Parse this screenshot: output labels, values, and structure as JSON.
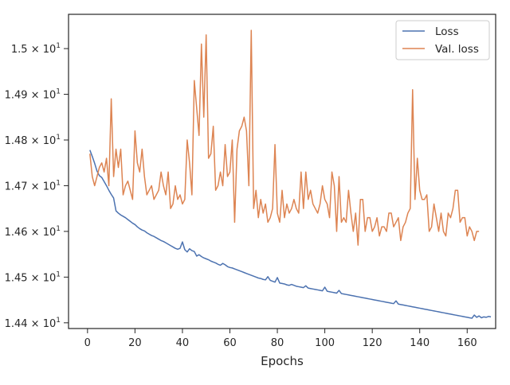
{
  "chart_data": {
    "type": "line",
    "title": "",
    "xlabel": "Epochs",
    "ylabel": "",
    "xlim": [
      -8,
      172
    ],
    "ylim": [
      14.3875,
      15.075
    ],
    "x_ticks": [
      0,
      20,
      40,
      60,
      80,
      100,
      120,
      140,
      160
    ],
    "x_tick_labels": [
      "0",
      "20",
      "40",
      "60",
      "80",
      "100",
      "120",
      "140",
      "160"
    ],
    "y_ticks": [
      14.4,
      14.5,
      14.6,
      14.7,
      14.8,
      14.9,
      15.0
    ],
    "y_tick_labels": [
      {
        "mantissa": "1.44",
        "base": "10",
        "exponent": "1"
      },
      {
        "mantissa": "1.45",
        "base": "10",
        "exponent": "1"
      },
      {
        "mantissa": "1.46",
        "base": "10",
        "exponent": "1"
      },
      {
        "mantissa": "1.47",
        "base": "10",
        "exponent": "1"
      },
      {
        "mantissa": "1.48",
        "base": "10",
        "exponent": "1"
      },
      {
        "mantissa": "1.49",
        "base": "10",
        "exponent": "1"
      },
      {
        "mantissa": "1.5",
        "base": "10",
        "exponent": "1"
      }
    ],
    "grid": false,
    "legend_position": "top-right",
    "series": [
      {
        "name": "Loss",
        "color": "#4c72b0",
        "x_start": 1,
        "values": [
          14.778,
          14.764,
          14.749,
          14.732,
          14.722,
          14.718,
          14.709,
          14.7,
          14.69,
          14.681,
          14.673,
          14.645,
          14.64,
          14.636,
          14.633,
          14.63,
          14.626,
          14.622,
          14.618,
          14.615,
          14.61,
          14.606,
          14.603,
          14.601,
          14.597,
          14.594,
          14.591,
          14.589,
          14.586,
          14.583,
          14.58,
          14.578,
          14.575,
          14.572,
          14.569,
          14.566,
          14.563,
          14.561,
          14.563,
          14.577,
          14.56,
          14.555,
          14.562,
          14.558,
          14.556,
          14.546,
          14.549,
          14.545,
          14.542,
          14.54,
          14.538,
          14.535,
          14.533,
          14.531,
          14.528,
          14.526,
          14.53,
          14.527,
          14.523,
          14.521,
          14.52,
          14.518,
          14.516,
          14.514,
          14.512,
          14.51,
          14.508,
          14.506,
          14.504,
          14.502,
          14.5,
          14.498,
          14.497,
          14.495,
          14.494,
          14.501,
          14.493,
          14.491,
          14.489,
          14.499,
          14.487,
          14.486,
          14.485,
          14.483,
          14.482,
          14.484,
          14.482,
          14.48,
          14.479,
          14.478,
          14.477,
          14.481,
          14.476,
          14.475,
          14.474,
          14.473,
          14.472,
          14.471,
          14.47,
          14.478,
          14.469,
          14.468,
          14.467,
          14.466,
          14.465,
          14.471,
          14.464,
          14.463,
          14.462,
          14.461,
          14.46,
          14.459,
          14.458,
          14.457,
          14.456,
          14.455,
          14.454,
          14.453,
          14.452,
          14.451,
          14.45,
          14.449,
          14.448,
          14.447,
          14.446,
          14.445,
          14.444,
          14.443,
          14.442,
          14.448,
          14.441,
          14.44,
          14.439,
          14.438,
          14.437,
          14.436,
          14.435,
          14.434,
          14.433,
          14.432,
          14.431,
          14.43,
          14.429,
          14.428,
          14.427,
          14.426,
          14.425,
          14.424,
          14.423,
          14.422,
          14.421,
          14.42,
          14.419,
          14.418,
          14.417,
          14.416,
          14.415,
          14.414,
          14.413,
          14.412,
          14.411,
          14.41,
          14.417,
          14.412,
          14.415,
          14.411,
          14.413,
          14.412,
          14.414,
          14.413
        ]
      },
      {
        "name": "Val. loss",
        "color": "#dd8452",
        "x_start": 1,
        "values": [
          14.77,
          14.72,
          14.7,
          14.72,
          14.74,
          14.75,
          14.73,
          14.76,
          14.7,
          14.89,
          14.72,
          14.78,
          14.74,
          14.78,
          14.68,
          14.7,
          14.71,
          14.69,
          14.67,
          14.82,
          14.75,
          14.73,
          14.78,
          14.72,
          14.68,
          14.69,
          14.7,
          14.67,
          14.68,
          14.69,
          14.73,
          14.7,
          14.68,
          14.73,
          14.65,
          14.66,
          14.7,
          14.67,
          14.68,
          14.66,
          14.67,
          14.8,
          14.75,
          14.68,
          14.93,
          14.87,
          14.81,
          15.01,
          14.85,
          15.03,
          14.76,
          14.77,
          14.83,
          14.69,
          14.7,
          14.73,
          14.7,
          14.79,
          14.72,
          14.73,
          14.8,
          14.62,
          14.78,
          14.82,
          14.83,
          14.85,
          14.82,
          14.7,
          15.04,
          14.65,
          14.69,
          14.63,
          14.67,
          14.64,
          14.66,
          14.62,
          14.63,
          14.65,
          14.79,
          14.64,
          14.62,
          14.69,
          14.63,
          14.66,
          14.64,
          14.65,
          14.67,
          14.65,
          14.64,
          14.73,
          14.65,
          14.73,
          14.67,
          14.69,
          14.66,
          14.65,
          14.64,
          14.66,
          14.7,
          14.67,
          14.66,
          14.63,
          14.73,
          14.7,
          14.6,
          14.72,
          14.62,
          14.63,
          14.62,
          14.69,
          14.64,
          14.6,
          14.64,
          14.57,
          14.67,
          14.67,
          14.6,
          14.63,
          14.63,
          14.6,
          14.61,
          14.63,
          14.59,
          14.61,
          14.61,
          14.6,
          14.64,
          14.64,
          14.61,
          14.62,
          14.63,
          14.58,
          14.61,
          14.62,
          14.64,
          14.65,
          14.91,
          14.67,
          14.76,
          14.69,
          14.67,
          14.67,
          14.68,
          14.6,
          14.61,
          14.66,
          14.63,
          14.6,
          14.64,
          14.6,
          14.59,
          14.64,
          14.63,
          14.65,
          14.69,
          14.69,
          14.62,
          14.63,
          14.63,
          14.59,
          14.61,
          14.6,
          14.58,
          14.6,
          14.6
        ]
      }
    ]
  }
}
